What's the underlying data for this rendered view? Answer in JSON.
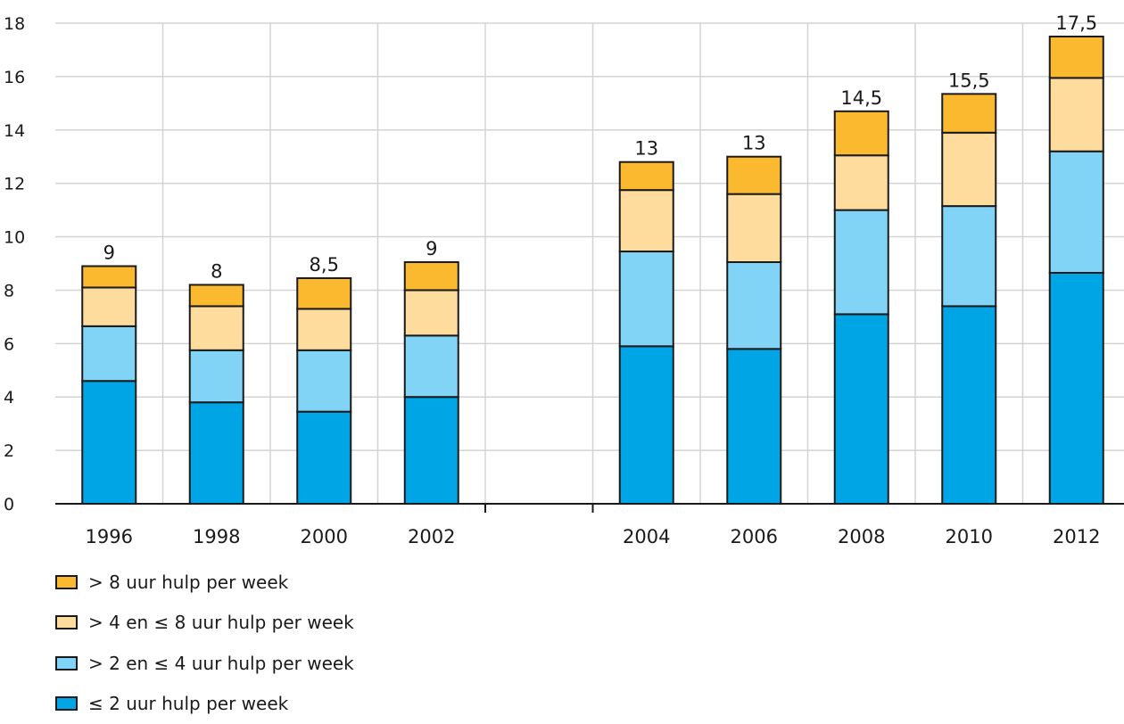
{
  "chart_data": {
    "type": "bar",
    "stacked": true,
    "categories": [
      "1996",
      "1998",
      "2000",
      "2002",
      "",
      "2004",
      "2006",
      "2008",
      "2010",
      "2012"
    ],
    "series": [
      {
        "name": "≤ 2 uur hulp per week",
        "color": "#00a5e6",
        "values": [
          4.6,
          3.8,
          3.45,
          4.0,
          null,
          5.9,
          5.8,
          7.1,
          7.4,
          8.65
        ]
      },
      {
        "name": "> 2 en ≤ 4 uur hulp per week",
        "color": "#82d4f7",
        "values": [
          2.05,
          1.95,
          2.3,
          2.3,
          null,
          3.55,
          3.25,
          3.9,
          3.75,
          4.55
        ]
      },
      {
        "name": "> 4 en ≤ 8 uur hulp per week",
        "color": "#fddc9e",
        "values": [
          1.45,
          1.65,
          1.55,
          1.7,
          null,
          2.3,
          2.55,
          2.05,
          2.75,
          2.75
        ]
      },
      {
        "name": "> 8 uur hulp per week",
        "color": "#fbb92f",
        "values": [
          0.8,
          0.8,
          1.15,
          1.05,
          null,
          1.05,
          1.4,
          1.65,
          1.45,
          1.55
        ]
      }
    ],
    "totals": [
      "9",
      "8",
      "8,5",
      "9",
      "",
      "13",
      "13",
      "14,5",
      "15,5",
      "17,5"
    ],
    "ylim": [
      0,
      18
    ],
    "yticks": [
      "0",
      "2",
      "4",
      "6",
      "8",
      "10",
      "12",
      "14",
      "16",
      "18"
    ],
    "grid": true,
    "legend_position": "bottom-left"
  }
}
